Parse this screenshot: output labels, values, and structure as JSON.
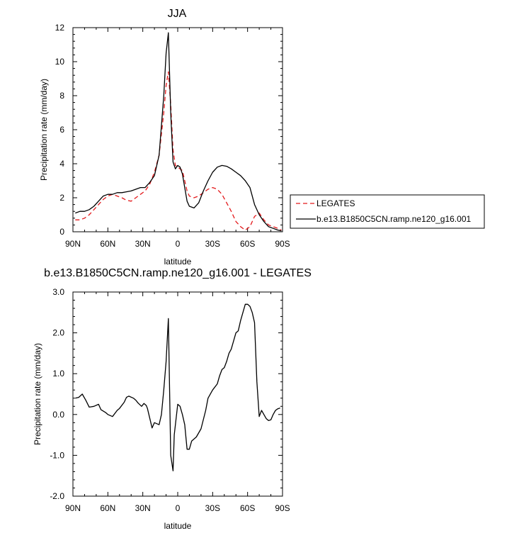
{
  "chart_data": [
    {
      "type": "line",
      "title": "JJA",
      "xlabel": "latitude",
      "ylabel": "Precipitation rate (mm/day)",
      "x_tick_labels": [
        "90N",
        "60N",
        "30N",
        "0",
        "30S",
        "60S",
        "90S"
      ],
      "x_tick_values": [
        90,
        60,
        30,
        0,
        -30,
        -60,
        -90
      ],
      "xlim": [
        90,
        -90
      ],
      "ylim": [
        0,
        12
      ],
      "y_ticks": [
        0,
        2,
        4,
        6,
        8,
        10,
        12
      ],
      "y_tick_labels": [
        "0",
        "2",
        "4",
        "6",
        "8",
        "10",
        "12"
      ],
      "legend_position": "right",
      "series": [
        {
          "name": "LEGATES",
          "color": "#e41a1c",
          "dash": "dashed",
          "x": [
            88,
            84,
            80,
            76,
            72,
            68,
            64,
            60,
            56,
            52,
            48,
            44,
            40,
            36,
            32,
            28,
            24,
            20,
            16,
            12,
            10,
            8,
            6,
            4,
            2,
            0,
            -2,
            -4,
            -6,
            -8,
            -10,
            -14,
            -18,
            -22,
            -26,
            -30,
            -34,
            -38,
            -42,
            -46,
            -50,
            -54,
            -58,
            -62,
            -66,
            -70,
            -74,
            -78,
            -82,
            -86,
            -89
          ],
          "y": [
            0.7,
            0.7,
            0.8,
            1.0,
            1.3,
            1.6,
            1.9,
            2.1,
            2.2,
            2.1,
            2.0,
            1.85,
            1.8,
            2.0,
            2.2,
            2.4,
            2.8,
            3.5,
            4.5,
            7.0,
            8.6,
            9.4,
            7.5,
            4.8,
            3.9,
            3.8,
            3.7,
            3.6,
            3.0,
            2.4,
            2.1,
            2.0,
            2.1,
            2.3,
            2.5,
            2.6,
            2.5,
            2.2,
            1.7,
            1.2,
            0.6,
            0.3,
            0.1,
            0.3,
            0.9,
            1.1,
            0.7,
            0.4,
            0.3,
            0.2,
            0.1
          ]
        },
        {
          "name": "b.e13.B1850C5CN.ramp.ne120_g16.001",
          "color": "#000000",
          "dash": "solid",
          "x": [
            88,
            84,
            80,
            76,
            72,
            68,
            64,
            60,
            56,
            52,
            48,
            44,
            40,
            36,
            32,
            28,
            24,
            20,
            16,
            12,
            10,
            8,
            6,
            4,
            2,
            0,
            -2,
            -4,
            -6,
            -8,
            -10,
            -14,
            -18,
            -22,
            -26,
            -30,
            -34,
            -38,
            -42,
            -46,
            -50,
            -54,
            -58,
            -62,
            -66,
            -70,
            -74,
            -78,
            -82,
            -86,
            -89
          ],
          "y": [
            1.1,
            1.2,
            1.2,
            1.3,
            1.5,
            1.8,
            2.1,
            2.2,
            2.2,
            2.3,
            2.3,
            2.35,
            2.4,
            2.5,
            2.6,
            2.6,
            2.9,
            3.3,
            4.5,
            8.0,
            10.5,
            11.7,
            7.0,
            4.1,
            3.7,
            3.9,
            3.8,
            3.4,
            2.6,
            1.8,
            1.5,
            1.4,
            1.7,
            2.4,
            3.0,
            3.5,
            3.8,
            3.9,
            3.85,
            3.7,
            3.5,
            3.3,
            3.0,
            2.6,
            1.6,
            1.0,
            0.6,
            0.3,
            0.2,
            0.1,
            0.05
          ]
        }
      ]
    },
    {
      "type": "line",
      "title": "b.e13.B1850C5CN.ramp.ne120_g16.001 - LEGATES",
      "xlabel": "latitude",
      "ylabel": "Precipitation rate (mm/day)",
      "x_tick_labels": [
        "90N",
        "60N",
        "30N",
        "0",
        "30S",
        "60S",
        "90S"
      ],
      "x_tick_values": [
        90,
        60,
        30,
        0,
        -30,
        -60,
        -90
      ],
      "xlim": [
        90,
        -90
      ],
      "ylim": [
        -2,
        3
      ],
      "y_ticks": [
        -2,
        -1,
        0,
        1,
        2,
        3
      ],
      "y_tick_labels": [
        "-2.0",
        "-1.0",
        "0.0",
        "1.0",
        "2.0",
        "3.0"
      ],
      "series": [
        {
          "color": "#000000",
          "dash": "solid",
          "x": [
            88,
            85,
            82,
            79,
            76,
            72,
            68,
            66,
            62,
            60,
            56,
            52,
            50,
            46,
            44,
            42,
            38,
            36,
            34,
            31,
            29,
            27,
            26,
            22,
            20,
            16,
            14,
            12,
            10,
            8,
            6,
            4,
            3,
            0,
            -2,
            -4,
            -6,
            -8,
            -10,
            -12,
            -16,
            -20,
            -24,
            -26,
            -30,
            -34,
            -36,
            -38,
            -40,
            -42,
            -44,
            -46,
            -48,
            -50,
            -52,
            -54,
            -56,
            -58,
            -60,
            -62,
            -64,
            -66,
            -68,
            -70,
            -72,
            -74,
            -76,
            -78,
            -80,
            -82,
            -84,
            -86,
            -88
          ],
          "y": [
            0.4,
            0.42,
            0.5,
            0.35,
            0.18,
            0.2,
            0.25,
            0.12,
            0.05,
            0.0,
            -0.05,
            0.1,
            0.15,
            0.3,
            0.42,
            0.45,
            0.4,
            0.35,
            0.28,
            0.2,
            0.27,
            0.22,
            0.15,
            -0.33,
            -0.2,
            -0.25,
            0.0,
            0.6,
            1.3,
            2.35,
            -1.0,
            -1.38,
            -0.5,
            0.25,
            0.2,
            0.0,
            -0.25,
            -0.85,
            -0.85,
            -0.65,
            -0.55,
            -0.35,
            0.1,
            0.4,
            0.6,
            0.75,
            0.95,
            1.1,
            1.15,
            1.3,
            1.5,
            1.6,
            1.8,
            2.0,
            2.05,
            2.3,
            2.5,
            2.7,
            2.7,
            2.65,
            2.5,
            2.25,
            0.8,
            -0.05,
            0.1,
            0.0,
            -0.1,
            -0.15,
            -0.13,
            0.0,
            0.1,
            0.14,
            0.16
          ]
        }
      ]
    }
  ]
}
